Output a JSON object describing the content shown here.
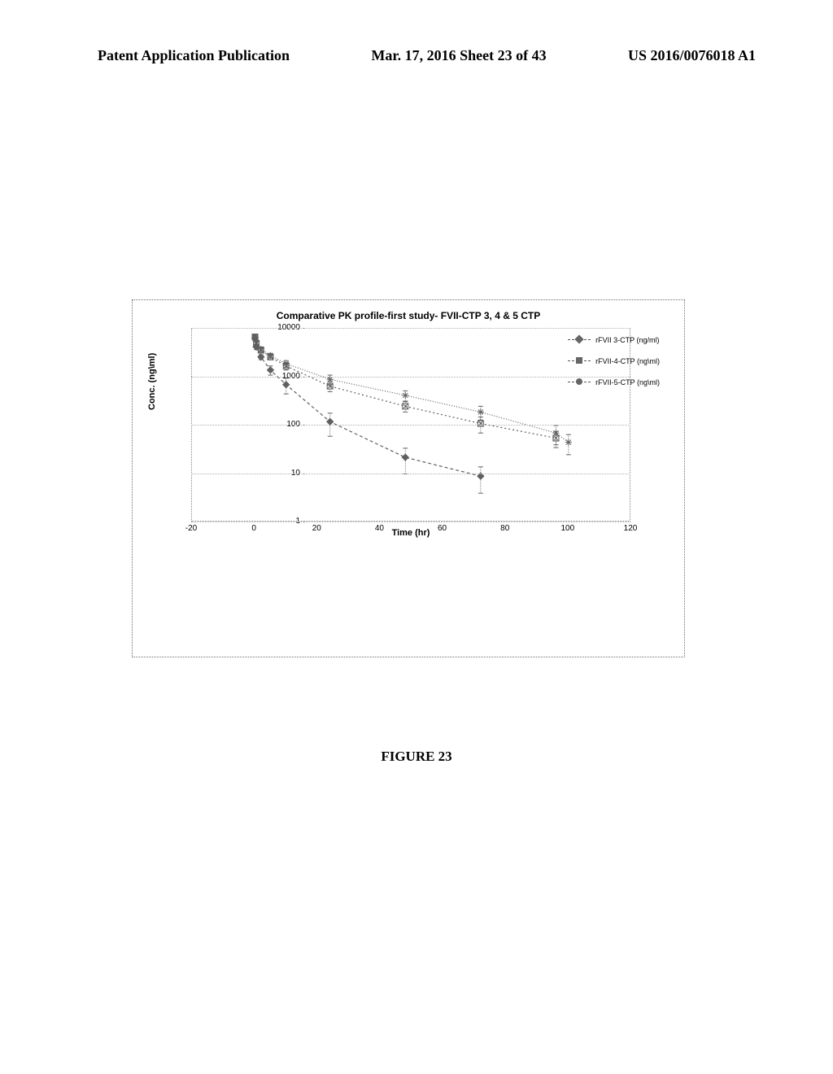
{
  "header": {
    "left": "Patent Application Publication",
    "center": "Mar. 17, 2016  Sheet 23 of 43",
    "right": "US 2016/0076018 A1"
  },
  "figure_caption": "FIGURE 23",
  "chart": {
    "type": "line",
    "title": "Comparative PK profile-first study- FVII-CTP 3, 4 & 5 CTP",
    "ylabel": "Conc. (ng\\ml)",
    "xlabel": "Time (hr)",
    "yscale": "log",
    "ylim": [
      1,
      10000
    ],
    "yticks": [
      1,
      10,
      100,
      1000,
      10000
    ],
    "ytick_labels": [
      "1",
      "10",
      "100",
      "1000",
      "10000"
    ],
    "xlim": [
      -20,
      120
    ],
    "xticks": [
      -20,
      0,
      20,
      40,
      60,
      80,
      100,
      120
    ],
    "xtick_labels": [
      "-20",
      "0",
      "20",
      "40",
      "60",
      "80",
      "100",
      "120"
    ],
    "background_color": "#ffffff",
    "grid_color": "#b0b0b0",
    "line_color": "#606060",
    "marker_color": "#606060",
    "title_fontsize": 12,
    "label_fontsize": 11,
    "tick_fontsize": 10,
    "legend_position": "upper-right-inside",
    "series": [
      {
        "name": "rFVII 3-CTP (ng/ml)",
        "marker": "diamond",
        "dash": "4,3",
        "x": [
          0.1,
          0.5,
          2,
          5,
          10,
          24,
          48,
          72
        ],
        "y": [
          6500,
          4200,
          2600,
          1400,
          700,
          120,
          22,
          9
        ],
        "err": [
          800,
          500,
          300,
          300,
          250,
          60,
          12,
          5
        ]
      },
      {
        "name": "rFVII-4-CTP (ng\\ml)",
        "marker": "square-cross",
        "dash": "2,3",
        "x": [
          0.1,
          0.5,
          2,
          5,
          10,
          24,
          48,
          72,
          96
        ],
        "y": [
          6800,
          5000,
          3600,
          2600,
          1700,
          650,
          250,
          110,
          55
        ],
        "err": [
          700,
          500,
          400,
          300,
          300,
          150,
          60,
          40,
          20
        ]
      },
      {
        "name": "rFVII-5-CTP (ng\\ml)",
        "marker": "asterisk",
        "dash": "1,2",
        "x": [
          0.1,
          0.5,
          2,
          5,
          10,
          24,
          48,
          72,
          96,
          100
        ],
        "y": [
          6300,
          5200,
          3800,
          2800,
          1900,
          900,
          420,
          190,
          70,
          45
        ],
        "err": [
          600,
          500,
          400,
          300,
          300,
          200,
          100,
          60,
          30,
          20
        ]
      }
    ]
  }
}
